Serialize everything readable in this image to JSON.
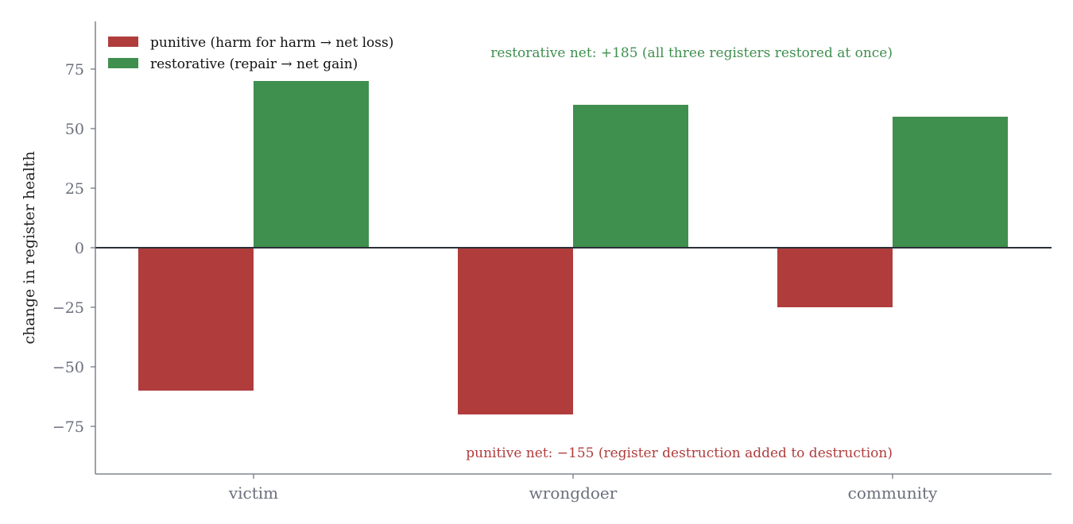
{
  "chart_data": {
    "type": "bar",
    "categories": [
      "victim",
      "wrongdoer",
      "community"
    ],
    "series": [
      {
        "name": "punitive  (harm for harm → net loss)",
        "color": "#b03c3c",
        "values": [
          -60,
          -70,
          -25
        ]
      },
      {
        "name": "restorative  (repair → net gain)",
        "color": "#3f8f4f",
        "values": [
          70,
          60,
          55
        ]
      }
    ],
    "title": "",
    "xlabel": "",
    "ylabel": "change in register health",
    "ylim": [
      -95,
      95
    ],
    "yticks": [
      -75,
      -50,
      -25,
      0,
      25,
      50,
      75
    ],
    "ytick_labels": [
      "−75",
      "−50",
      "−25",
      "0",
      "25",
      "50",
      "75"
    ],
    "grid": false,
    "legend_position": "top-left",
    "annotations": [
      {
        "text": "restorative net:  +185   (all three registers restored at once)",
        "color": "#3f8f4f",
        "x": 2,
        "y": 82,
        "anchor": "end"
      },
      {
        "text": "punitive net:  −155   (register destruction added to destruction)",
        "color": "#b03c3c",
        "x": 2,
        "y": -86,
        "anchor": "end"
      }
    ]
  }
}
